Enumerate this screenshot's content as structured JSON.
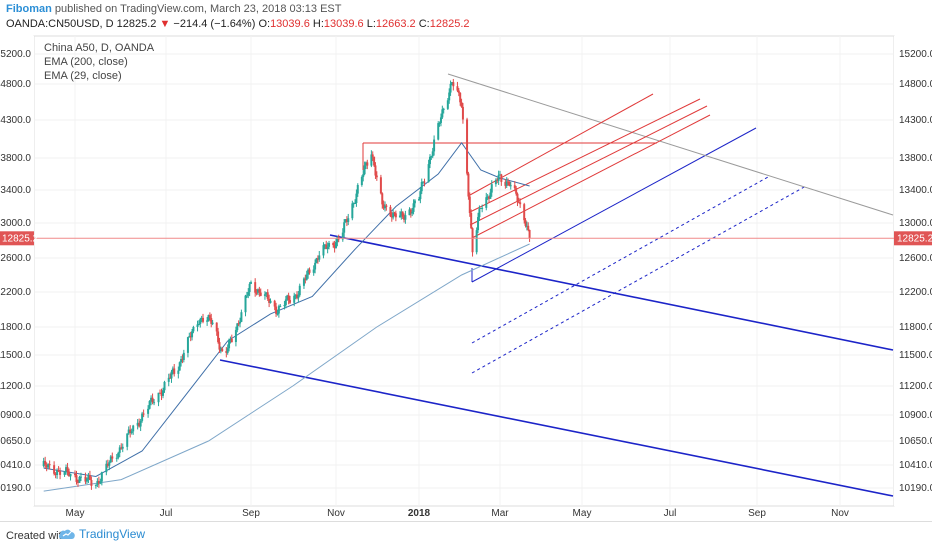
{
  "header": {
    "user": "Fiboman",
    "published": "published on TradingView.com, March 23, 2018 03:13 EST",
    "symbol": "OANDA:CN50USD, D",
    "price": "12825.2",
    "arrow": "▼",
    "change": "−214.4 (−1.64%)",
    "o_label": "O:",
    "o_val": "13039.6",
    "h_label": "H:",
    "h_val": "13039.6",
    "l_label": "L:",
    "l_val": "12663.2",
    "c_label": "C:",
    "c_val": "12825.2"
  },
  "legend": [
    "China A50, D, OANDA",
    "EMA (200, close)",
    "EMA (29, close)"
  ],
  "footer": {
    "created": "Created with",
    "brand": "TradingView"
  },
  "colors": {
    "up": "#26a69a",
    "down": "#e04a4a",
    "ema29": "#3f6fa8",
    "ema200": "#7fa7c9",
    "blue_line": "#1c24c8",
    "red_line": "#e03a3a",
    "grey_line": "#9a9a9a",
    "price_line": "#f08a8a",
    "price_badge": "#e05555"
  },
  "chart_data": {
    "type": "candlestick",
    "symbol": "OANDA:CN50USD",
    "timeframe": "D",
    "last_price": 12825.2,
    "y_ticks": [
      10190,
      10410,
      10650,
      10900,
      11200,
      11500,
      11800,
      12200,
      12600,
      13000,
      13400,
      13800,
      14300,
      14800,
      15200
    ],
    "y_tick_labels": [
      "10190.0",
      "10410.0",
      "10650.0",
      "10900.0",
      "11200.0",
      "11500.0",
      "11800.0",
      "12200.0",
      "12600.0",
      "13000.0",
      "13400.0",
      "13800.0",
      "14300.0",
      "14800.0",
      "15200.0"
    ],
    "x_labels": [
      "May",
      "Jul",
      "Sep",
      "Nov",
      "2018",
      "Mar",
      "May",
      "Jul",
      "Sep",
      "Nov"
    ],
    "price_path": [
      [
        "2017-04-10",
        10400
      ],
      [
        "2017-05-01",
        10300
      ],
      [
        "2017-05-15",
        10230
      ],
      [
        "2017-06-01",
        10600
      ],
      [
        "2017-06-20",
        11000
      ],
      [
        "2017-07-10",
        11400
      ],
      [
        "2017-07-25",
        11900
      ],
      [
        "2017-08-05",
        11850
      ],
      [
        "2017-08-12",
        11450
      ],
      [
        "2017-08-25",
        11950
      ],
      [
        "2017-09-01",
        12300
      ],
      [
        "2017-09-20",
        12000
      ],
      [
        "2017-10-05",
        12200
      ],
      [
        "2017-10-20",
        12650
      ],
      [
        "2017-11-05",
        12850
      ],
      [
        "2017-11-20",
        13550
      ],
      [
        "2017-11-27",
        13900
      ],
      [
        "2017-12-05",
        13200
      ],
      [
        "2017-12-20",
        13050
      ],
      [
        "2018-01-01",
        13300
      ],
      [
        "2018-01-12",
        14000
      ],
      [
        "2018-01-25",
        14850
      ],
      [
        "2018-02-01",
        14500
      ],
      [
        "2018-02-06",
        13400
      ],
      [
        "2018-02-09",
        12660
      ],
      [
        "2018-02-15",
        13200
      ],
      [
        "2018-02-28",
        13550
      ],
      [
        "2018-03-08",
        13500
      ],
      [
        "2018-03-16",
        13200
      ],
      [
        "2018-03-20",
        13040
      ],
      [
        "2018-03-23",
        12825
      ]
    ],
    "ema29": [
      [
        "2017-04-10",
        10380
      ],
      [
        "2017-05-15",
        10300
      ],
      [
        "2017-06-15",
        10550
      ],
      [
        "2017-07-15",
        11100
      ],
      [
        "2017-08-15",
        11650
      ],
      [
        "2017-09-15",
        11950
      ],
      [
        "2017-10-15",
        12150
      ],
      [
        "2017-11-15",
        12700
      ],
      [
        "2017-12-15",
        13200
      ],
      [
        "2018-01-15",
        13600
      ],
      [
        "2018-02-01",
        14000
      ],
      [
        "2018-02-15",
        13650
      ],
      [
        "2018-03-01",
        13550
      ],
      [
        "2018-03-23",
        13450
      ]
    ],
    "ema200": [
      [
        "2017-04-10",
        10160
      ],
      [
        "2017-06-01",
        10270
      ],
      [
        "2017-08-01",
        10650
      ],
      [
        "2017-10-01",
        11200
      ],
      [
        "2017-12-01",
        11800
      ],
      [
        "2018-02-01",
        12400
      ],
      [
        "2018-03-23",
        12760
      ]
    ]
  }
}
